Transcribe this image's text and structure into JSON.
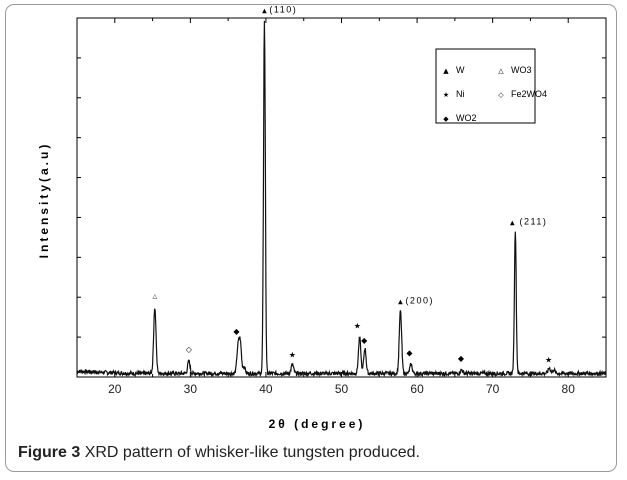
{
  "caption": {
    "label": "Figure 3",
    "text": "XRD pattern of whisker-like tungsten produced."
  },
  "chart_data": {
    "type": "line",
    "title": "",
    "xlabel": "2θ (degree)",
    "ylabel": "Intensity(a.u)",
    "xlim": [
      15,
      85
    ],
    "ylim": [
      0,
      100
    ],
    "xticks": [
      20,
      30,
      40,
      50,
      60,
      70,
      80
    ],
    "grid": false,
    "legend_position": "top-right",
    "legend": [
      {
        "marker": "▲",
        "label": "W"
      },
      {
        "marker": "△",
        "label": "WO3"
      },
      {
        "marker": "★",
        "label": "Ni"
      },
      {
        "marker": "◇",
        "label": "Fe2WO4"
      },
      {
        "marker": "◆",
        "label": "WO2"
      }
    ],
    "series": [
      {
        "baseline": 1,
        "peaks": [
          {
            "x": 25.3,
            "y": 19.5
          },
          {
            "x": 29.8,
            "y": 4.5
          },
          {
            "x": 36.3,
            "y": 8
          },
          {
            "x": 36.6,
            "y": 9.5
          },
          {
            "x": 37.1,
            "y": 3
          },
          {
            "x": 39.8,
            "y": 99
          },
          {
            "x": 43.5,
            "y": 3.5
          },
          {
            "x": 52.4,
            "y": 11
          },
          {
            "x": 53.1,
            "y": 8
          },
          {
            "x": 57.8,
            "y": 18.5
          },
          {
            "x": 59.2,
            "y": 3.5
          },
          {
            "x": 65.9,
            "y": 2
          },
          {
            "x": 73.0,
            "y": 41
          },
          {
            "x": 77.5,
            "y": 2.5
          },
          {
            "x": 78.1,
            "y": 2
          }
        ]
      }
    ],
    "annotations": [
      {
        "x": 39.8,
        "y": 101.5,
        "label": "(110)"
      },
      {
        "x": 57.8,
        "y": 20.5,
        "label": "(200)"
      },
      {
        "x": 72.9,
        "y": 42.5,
        "label": "(211)"
      }
    ],
    "markers": [
      {
        "x": 25.3,
        "y": 22,
        "symbol": "△"
      },
      {
        "x": 29.8,
        "y": 7,
        "symbol": "◇"
      },
      {
        "x": 36.1,
        "y": 12,
        "symbol": "◆"
      },
      {
        "x": 39.8,
        "y": 101.5,
        "symbol": "▲"
      },
      {
        "x": 43.5,
        "y": 5.5,
        "symbol": "★"
      },
      {
        "x": 52.1,
        "y": 13.5,
        "symbol": "★"
      },
      {
        "x": 53.0,
        "y": 9.5,
        "symbol": "◆"
      },
      {
        "x": 57.8,
        "y": 20.5,
        "symbol": "▲"
      },
      {
        "x": 59.0,
        "y": 6,
        "symbol": "◆"
      },
      {
        "x": 65.8,
        "y": 4.5,
        "symbol": "◆"
      },
      {
        "x": 72.6,
        "y": 42.5,
        "symbol": "▲"
      },
      {
        "x": 77.4,
        "y": 4,
        "symbol": "★"
      }
    ]
  }
}
